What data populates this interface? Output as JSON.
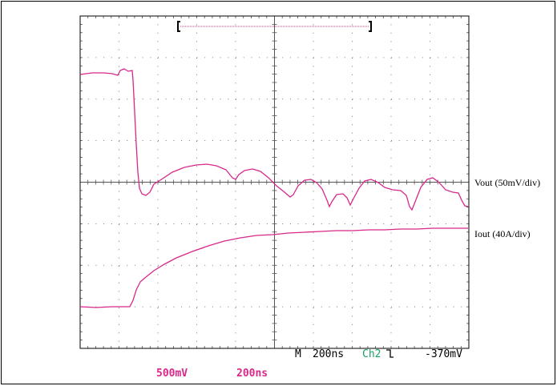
{
  "traces": {
    "vout_label": "Vout (50mV/div)",
    "iout_label": "Iout (40A/div)"
  },
  "status": {
    "mode": "M",
    "timebase": "200ns",
    "channel": "Ch2",
    "trigger_level": "-370mV"
  },
  "footer": {
    "volts_per_div": "500mV",
    "time_per_div": "200ns"
  }
}
